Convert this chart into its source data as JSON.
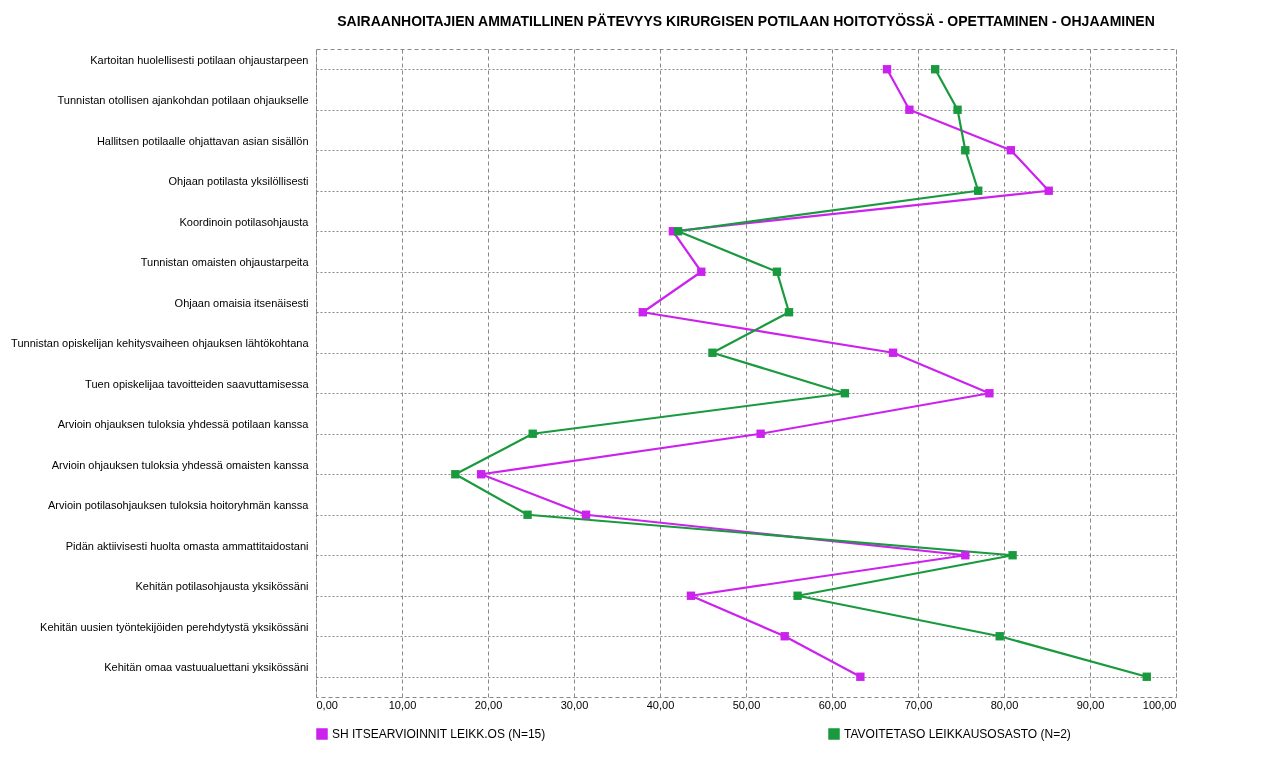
{
  "chart_data": {
    "type": "line",
    "title": "SAIRAANHOITAJIEN AMMATILLINEN PÄTEVYYS KIRURGISEN POTILAAN HOITOTYÖSSÄ - OPETTAMINEN - OHJAAMINEN",
    "orientation": "horizontal",
    "categories": [
      "Kartoitan huolellisesti potilaan ohjaustarpeen",
      "Tunnistan otollisen ajankohdan potilaan ohjaukselle",
      "Hallitsen potilaalle ohjattavan asian sisällön",
      "Ohjaan potilasta yksilöllisesti",
      "Koordinoin potilasohjausta",
      "Tunnistan omaisten ohjaustarpeita",
      "Ohjaan omaisia itsenäisesti",
      "Tunnistan opiskelijan kehitysvaiheen ohjauksen lähtökohtana",
      "Tuen opiskelijaa tavoitteiden saavuttamisessa",
      "Arvioin ohjauksen tuloksia yhdessä potilaan kanssa",
      "Arvioin ohjauksen tuloksia yhdessä omaisten kanssa",
      "Arvioin potilasohjauksen tuloksia hoitoryhmän kanssa",
      "Pidän aktiivisesti huolta omasta ammattitaidostani",
      "Kehitän potilasohjausta yksikössäni",
      "Kehitän uusien työntekijöiden perehdytystä yksikössäni",
      "Kehitän omaa vastuualuettani yksikössäni"
    ],
    "series": [
      {
        "name": "SH ITSEARVIOINNIT LEIKK.OS (N=15)",
        "color": "#cc22ee",
        "values": [
          66.4,
          69.0,
          80.8,
          85.2,
          41.5,
          44.8,
          38.0,
          67.1,
          78.3,
          51.7,
          19.2,
          31.4,
          75.5,
          43.6,
          54.5,
          63.3
        ]
      },
      {
        "name": "TAVOITETASO LEIKKAUSOSASTO (N=2)",
        "color": "#1a9a3e",
        "values": [
          72.0,
          74.6,
          75.5,
          77.0,
          42.1,
          53.6,
          55.0,
          46.1,
          61.5,
          25.2,
          16.2,
          24.6,
          81.0,
          56.0,
          79.5,
          96.6
        ]
      }
    ],
    "xlim": [
      0,
      100
    ],
    "xticks": [
      {
        "value": 0,
        "label": "0,00"
      },
      {
        "value": 10,
        "label": "10,00"
      },
      {
        "value": 20,
        "label": "20,00"
      },
      {
        "value": 30,
        "label": "30,00"
      },
      {
        "value": 40,
        "label": "40,00"
      },
      {
        "value": 50,
        "label": "50,00"
      },
      {
        "value": 60,
        "label": "60,00"
      },
      {
        "value": 70,
        "label": "70,00"
      },
      {
        "value": 80,
        "label": "80,00"
      },
      {
        "value": 90,
        "label": "90,00"
      },
      {
        "value": 100,
        "label": "100,00"
      }
    ],
    "grid": true,
    "legend": "bottom",
    "marker": "square",
    "line_style": "solid"
  }
}
